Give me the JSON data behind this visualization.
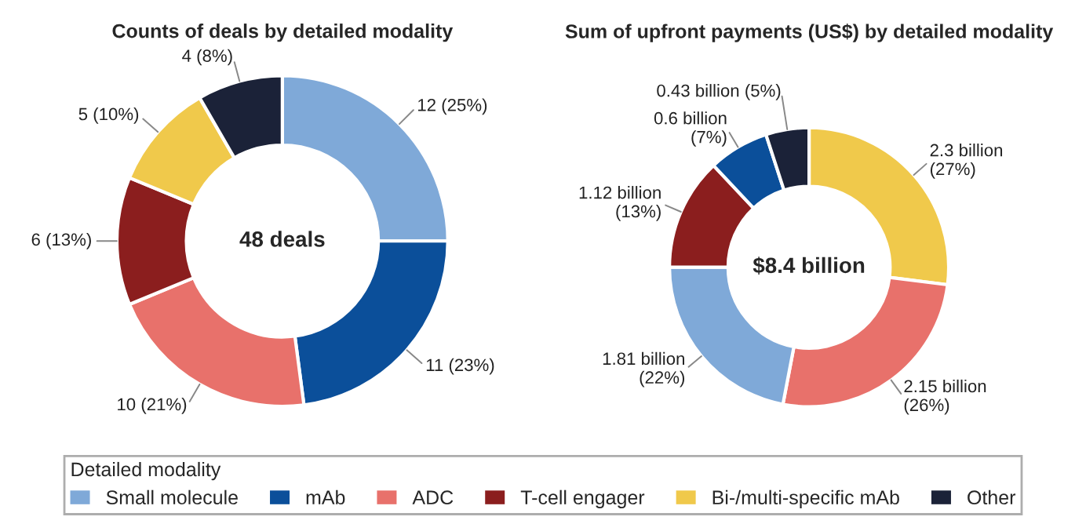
{
  "chart_data": [
    {
      "type": "donut",
      "title": "Counts of deals by detailed modality",
      "categories": [
        "Small molecule",
        "mAb",
        "ADC",
        "T-cell engager",
        "Bi-/multi-specific mAb",
        "Other"
      ],
      "values": [
        12,
        11,
        10,
        6,
        5,
        4
      ],
      "colors": [
        "#7fa9d8",
        "#0b4f9a",
        "#e8716b",
        "#8b1e1e",
        "#f0c94b",
        "#1b2238"
      ],
      "value_labels": [
        "12 (25%)",
        "11 (23%)",
        "10 (21%)",
        "6 (13%)",
        "5 (10%)",
        "4 (8%)"
      ],
      "annotations": [
        "48 deals"
      ],
      "legend": "bottom",
      "legend_title": "Detailed modality"
    },
    {
      "type": "donut",
      "title": "Sum of upfront payments (US$) by detailed modality",
      "categories": [
        null,
        null,
        null,
        null,
        null,
        null
      ],
      "values": [
        27,
        26,
        22,
        13,
        7,
        5
      ],
      "colors": [
        "#f0c94b",
        "#e8716b",
        "#7fa9d8",
        "#8b1e1e",
        "#0b4f9a",
        "#1b2238"
      ],
      "value_labels": [
        "2.3 billion\n(27%)",
        "2.15 billion\n(26%)",
        "1.81 billion\n(22%)",
        "1.12 billion\n(13%)",
        "0.6 billion\n(7%)",
        "0.43 billion (5%)"
      ],
      "annotations": [
        "$8.4 billion"
      ]
    }
  ]
}
